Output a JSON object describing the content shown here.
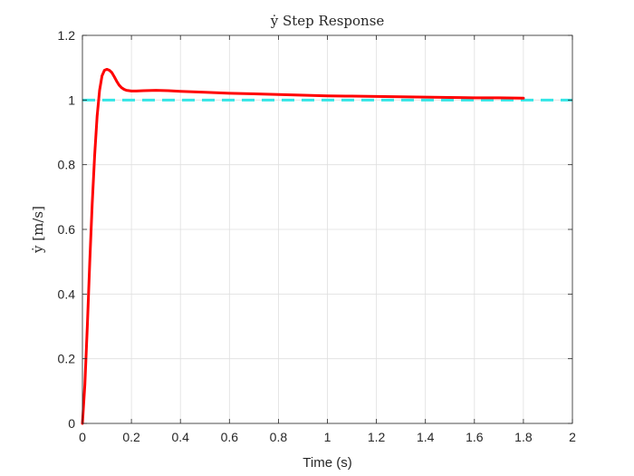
{
  "chart_data": {
    "type": "line",
    "title": "ẏ Step Response",
    "xlabel": "Time (s)",
    "ylabel": "ẏ [m/s]",
    "xlim": [
      0,
      2
    ],
    "ylim": [
      0,
      1.2
    ],
    "xticks": [
      0,
      0.2,
      0.4,
      0.6,
      0.8,
      1,
      1.2,
      1.4,
      1.6,
      1.8,
      2
    ],
    "yticks": [
      0,
      0.2,
      0.4,
      0.6,
      0.8,
      1,
      1.2
    ],
    "xtick_labels": [
      "0",
      "0.2",
      "0.4",
      "0.6",
      "0.8",
      "1",
      "1.2",
      "1.4",
      "1.6",
      "1.8",
      "2"
    ],
    "ytick_labels": [
      "0",
      "0.2",
      "0.4",
      "0.6",
      "0.8",
      "1",
      "1.2"
    ],
    "grid": true,
    "series": [
      {
        "color": "#ff0000",
        "style": "solid",
        "x": [
          0,
          0.01,
          0.02,
          0.03,
          0.04,
          0.05,
          0.06,
          0.07,
          0.08,
          0.09,
          0.1,
          0.11,
          0.12,
          0.13,
          0.14,
          0.15,
          0.16,
          0.17,
          0.18,
          0.2,
          0.22,
          0.25,
          0.3,
          0.35,
          0.4,
          0.5,
          0.6,
          0.7,
          0.8,
          0.9,
          1.0,
          1.1,
          1.2,
          1.3,
          1.4,
          1.5,
          1.6,
          1.7,
          1.8
        ],
        "y": [
          0,
          0.12,
          0.3,
          0.5,
          0.68,
          0.83,
          0.95,
          1.03,
          1.075,
          1.092,
          1.095,
          1.092,
          1.085,
          1.072,
          1.058,
          1.046,
          1.038,
          1.033,
          1.03,
          1.028,
          1.028,
          1.029,
          1.03,
          1.029,
          1.027,
          1.024,
          1.021,
          1.019,
          1.017,
          1.015,
          1.013,
          1.012,
          1.011,
          1.01,
          1.009,
          1.008,
          1.007,
          1.007,
          1.006
        ]
      },
      {
        "color": "#33e6e6",
        "style": "dashed",
        "x": [
          0,
          2
        ],
        "y": [
          1,
          1
        ]
      }
    ]
  }
}
